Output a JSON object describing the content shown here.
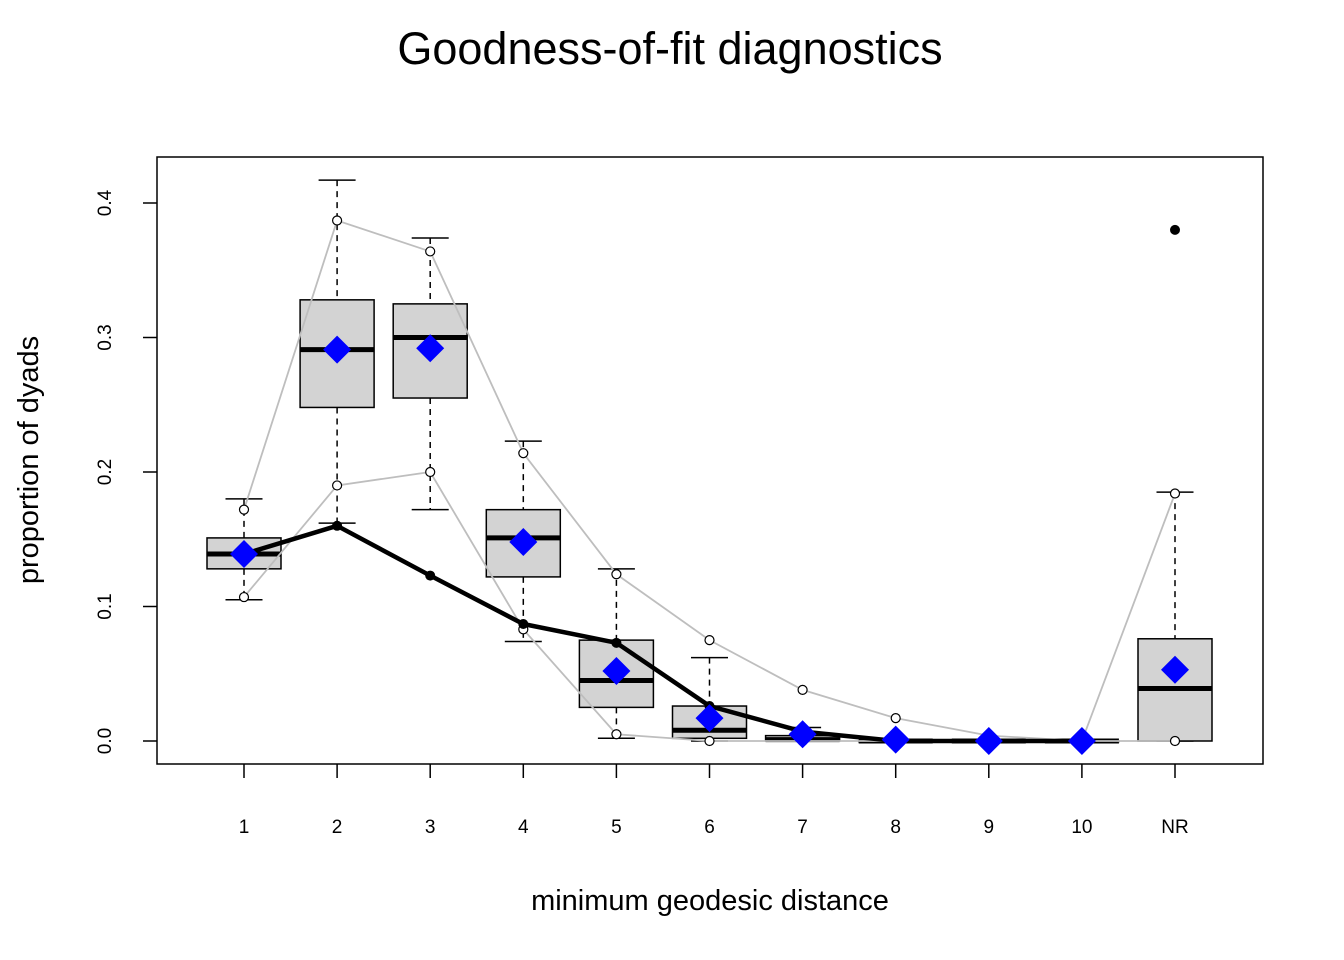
{
  "chart_data": {
    "type": "box",
    "title": "Goodness-of-fit diagnostics",
    "xlabel": "minimum geodesic distance",
    "ylabel": "proportion of dyads",
    "categories": [
      "1",
      "2",
      "3",
      "4",
      "5",
      "6",
      "7",
      "8",
      "9",
      "10",
      "NR"
    ],
    "y_ticks": [
      "0.0",
      "0.1",
      "0.2",
      "0.3",
      "0.4"
    ],
    "ylim": [
      -0.017,
      0.435
    ],
    "grid": false,
    "legend": "none",
    "boxes": [
      {
        "category": "1",
        "whisker_low": 0.105,
        "q1": 0.128,
        "median": 0.139,
        "q3": 0.151,
        "whisker_high": 0.18
      },
      {
        "category": "2",
        "whisker_low": 0.162,
        "q1": 0.248,
        "median": 0.291,
        "q3": 0.328,
        "whisker_high": 0.417
      },
      {
        "category": "3",
        "whisker_low": 0.172,
        "q1": 0.255,
        "median": 0.3,
        "q3": 0.325,
        "whisker_high": 0.374
      },
      {
        "category": "4",
        "whisker_low": 0.074,
        "q1": 0.122,
        "median": 0.151,
        "q3": 0.172,
        "whisker_high": 0.223
      },
      {
        "category": "5",
        "whisker_low": 0.002,
        "q1": 0.025,
        "median": 0.045,
        "q3": 0.075,
        "whisker_high": 0.128
      },
      {
        "category": "6",
        "whisker_low": 0.0,
        "q1": 0.002,
        "median": 0.008,
        "q3": 0.026,
        "whisker_high": 0.062
      },
      {
        "category": "7",
        "whisker_low": 0.0,
        "q1": 0.0,
        "median": 0.001,
        "q3": 0.004,
        "whisker_high": 0.01
      },
      {
        "category": "8",
        "whisker_low": 0.0,
        "q1": 0.0,
        "median": 0.0,
        "q3": 0.0,
        "whisker_high": 0.0
      },
      {
        "category": "9",
        "whisker_low": 0.0,
        "q1": 0.0,
        "median": 0.0,
        "q3": 0.0,
        "whisker_high": 0.0
      },
      {
        "category": "10",
        "whisker_low": 0.0,
        "q1": 0.0,
        "median": 0.0,
        "q3": 0.0,
        "whisker_high": 0.0
      },
      {
        "category": "NR",
        "whisker_low": 0.0,
        "q1": 0.0,
        "median": 0.039,
        "q3": 0.076,
        "whisker_high": 0.185
      }
    ],
    "outliers": [
      {
        "category": "NR",
        "value": 0.38
      }
    ],
    "series": [
      {
        "role": "observed",
        "style": "thick black line with points",
        "color": "#000000",
        "x": [
          "1",
          "2",
          "3",
          "4",
          "5",
          "6",
          "7",
          "8",
          "9",
          "10"
        ],
        "values": [
          0.139,
          0.16,
          0.123,
          0.087,
          0.073,
          0.026,
          0.007,
          0.0,
          0.0,
          0.0
        ]
      },
      {
        "role": "simulated mean",
        "style": "blue diamonds",
        "color": "#0000ff",
        "x": [
          "1",
          "2",
          "3",
          "4",
          "5",
          "6",
          "7",
          "8",
          "9",
          "10",
          "NR"
        ],
        "values": [
          0.139,
          0.291,
          0.292,
          0.148,
          0.052,
          0.017,
          0.005,
          0.001,
          0.0,
          0.0,
          0.053
        ]
      },
      {
        "role": "upper interval",
        "style": "grey line with open circles",
        "color": "#bebebe",
        "x": [
          "1",
          "2",
          "3",
          "4",
          "5",
          "6",
          "7",
          "8",
          "9",
          "10",
          "NR"
        ],
        "values": [
          0.172,
          0.387,
          0.364,
          0.214,
          0.124,
          0.075,
          0.038,
          0.017,
          0.004,
          0.0,
          0.184
        ]
      },
      {
        "role": "lower interval",
        "style": "grey line with open circles",
        "color": "#bebebe",
        "x": [
          "1",
          "2",
          "3",
          "4",
          "5",
          "6",
          "7",
          "8",
          "9",
          "10",
          "NR"
        ],
        "values": [
          0.107,
          0.19,
          0.2,
          0.083,
          0.005,
          0.0,
          0.0,
          0.0,
          0.0,
          0.0,
          0.0
        ]
      }
    ],
    "colors": {
      "box_fill": "#d3d3d3",
      "box_stroke": "#000000",
      "interval_line": "#bebebe",
      "observed_line": "#000000",
      "mean_marker": "#0000ff"
    }
  }
}
